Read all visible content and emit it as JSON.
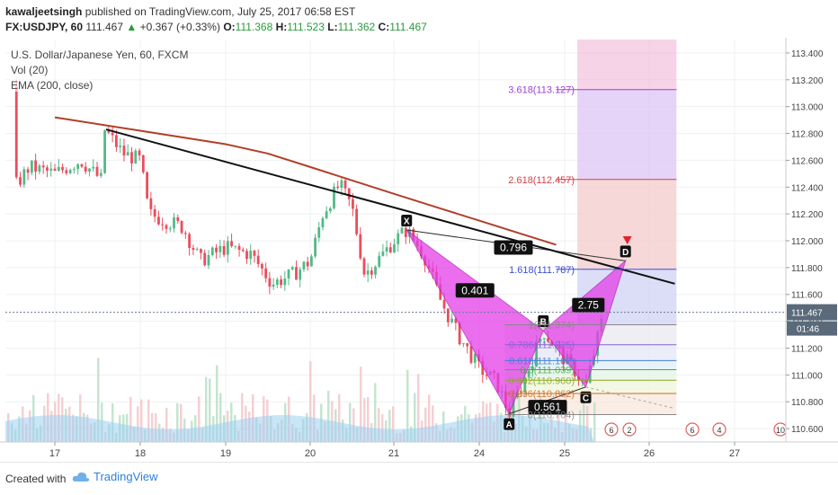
{
  "header": {
    "author": "kawaljeetsingh",
    "published": "published on TradingView.com, July 25, 2017 06:58 EST",
    "symbol": "FX:USDJPY, 60",
    "last": "111.467",
    "change_arrow": "▲",
    "change": "+0.367 (+0.33%)",
    "o_label": "O:",
    "o": "111.368",
    "h_label": "H:",
    "h": "111.523",
    "l_label": "L:",
    "l": "111.362",
    "c_label": "C:",
    "c": "111.467"
  },
  "legend": {
    "title": "U.S. Dollar/Japanese Yen, 60, FXCM",
    "vol": "Vol (20)",
    "ema": "EMA (200, close)"
  },
  "footer": {
    "created_with": "Created with",
    "brand": "TradingView"
  },
  "colors": {
    "up": "#53b987",
    "down": "#eb4d5c",
    "ema": "#b0402a",
    "trendline": "#111111",
    "pattern": "#e33ee8",
    "price_tag": "#5a6a7a"
  },
  "chart_data": {
    "type": "line",
    "series_type": "candlestick",
    "x_ticks": [
      "17",
      "18",
      "19",
      "20",
      "21",
      "24",
      "25",
      "26",
      "27"
    ],
    "y_ticks": [
      "113.400",
      "113.200",
      "113.000",
      "112.800",
      "112.600",
      "112.400",
      "112.200",
      "112.000",
      "111.800",
      "111.600",
      "111.400",
      "111.200",
      "111.000",
      "110.800",
      "110.600"
    ],
    "ylim": [
      110.5,
      113.5
    ],
    "last_price": "111.467",
    "countdown": "01:46",
    "ema_200": [
      {
        "x": 0,
        "y": 112.92
      },
      {
        "x": 1,
        "y": 112.82
      },
      {
        "x": 2,
        "y": 112.72
      },
      {
        "x": 2.5,
        "y": 112.65
      },
      {
        "x": 3,
        "y": 112.55
      },
      {
        "x": 3.5,
        "y": 112.45
      },
      {
        "x": 4,
        "y": 112.35
      },
      {
        "x": 4.5,
        "y": 112.25
      },
      {
        "x": 5,
        "y": 112.15
      },
      {
        "x": 5.5,
        "y": 112.05
      },
      {
        "x": 5.9,
        "y": 111.97
      }
    ],
    "trendline": [
      {
        "x": 0.6,
        "y": 112.83
      },
      {
        "x": 7.3,
        "y": 111.68
      }
    ],
    "harmonic": {
      "X": {
        "x": 4.15,
        "y": 112.08
      },
      "A": {
        "x": 5.35,
        "y": 110.71
      },
      "B": {
        "x": 5.75,
        "y": 111.33
      },
      "C": {
        "x": 6.25,
        "y": 110.91
      },
      "D": {
        "x": 6.72,
        "y": 111.85
      },
      "ratios": [
        {
          "text": "0.401",
          "x": 4.95,
          "y": 111.63
        },
        {
          "text": "0.796",
          "x": 5.4,
          "y": 111.95
        },
        {
          "text": "0.561",
          "x": 5.8,
          "y": 110.76
        },
        {
          "text": "2.75",
          "x": 6.28,
          "y": 111.52
        }
      ]
    },
    "fib_extension": [
      {
        "label": "3.618(113.127)",
        "y": 113.127,
        "color": "#a040d8"
      },
      {
        "label": "2.618(112.457)",
        "y": 112.457,
        "color": "#d6404a"
      },
      {
        "label": "1.618(111.787)",
        "y": 111.787,
        "color": "#3f4dd8"
      }
    ],
    "fib_retracement": [
      {
        "label": "1(111.374)",
        "y": 111.374,
        "color": "#888888"
      },
      {
        "label": "0.786(111.225)",
        "y": 111.225,
        "color": "#8a5fd8"
      },
      {
        "label": "0.618(111.107)",
        "y": 111.107,
        "color": "#3f7fd8"
      },
      {
        "label": "0.5(111.039)",
        "y": 111.039,
        "color": "#4aa84a"
      },
      {
        "label": "0.382(110.960)",
        "y": 110.96,
        "color": "#8aa820"
      },
      {
        "label": "0.236(110.862)",
        "y": 110.862,
        "color": "#d06a20"
      },
      {
        "label": "0(110.704)",
        "y": 110.704,
        "color": "#888888"
      }
    ]
  }
}
